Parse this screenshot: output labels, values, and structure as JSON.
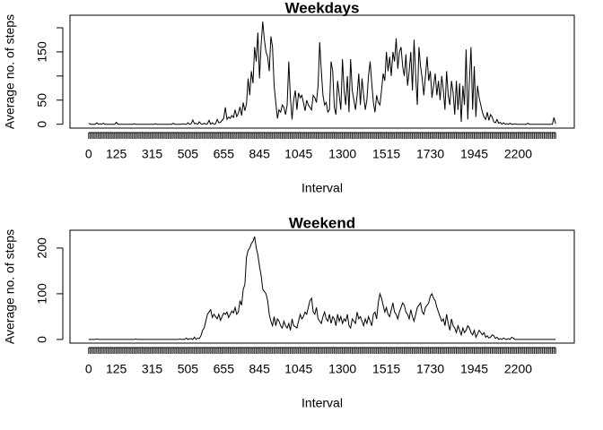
{
  "chart_data": [
    {
      "type": "line",
      "title": "Weekdays",
      "x_label": "Interval",
      "y_label": "Average no. of steps",
      "categories": [
        "0",
        null,
        null,
        null,
        null,
        null,
        null,
        null,
        null,
        null,
        null,
        null,
        null,
        null,
        null,
        null,
        null,
        "125",
        null,
        null,
        null,
        null,
        null,
        null,
        null,
        null,
        null,
        null,
        null,
        null,
        null,
        null,
        null,
        null,
        null,
        null,
        null,
        null,
        null,
        "315",
        null,
        null,
        null,
        null,
        null,
        null,
        null,
        null,
        null,
        null,
        null,
        null,
        null,
        null,
        null,
        null,
        null,
        null,
        null,
        null,
        null,
        "505",
        null,
        null,
        null,
        null,
        null,
        null,
        null,
        null,
        null,
        null,
        null,
        null,
        null,
        null,
        null,
        null,
        null,
        null,
        null,
        null,
        null,
        "655",
        null,
        null,
        null,
        null,
        null,
        null,
        null,
        null,
        null,
        null,
        null,
        null,
        null,
        null,
        null,
        null,
        null,
        null,
        null,
        null,
        null,
        "845",
        null,
        null,
        null,
        null,
        null,
        null,
        null,
        null,
        null,
        null,
        null,
        null,
        null,
        null,
        null,
        null,
        null,
        null,
        null,
        null,
        null,
        null,
        null,
        "1045",
        null,
        null,
        null,
        null,
        null,
        null,
        null,
        null,
        null,
        null,
        null,
        null,
        null,
        null,
        null,
        null,
        null,
        null,
        null,
        null,
        null,
        null,
        null,
        null,
        null,
        null,
        "1300",
        null,
        null,
        null,
        null,
        null,
        null,
        null,
        null,
        null,
        null,
        null,
        null,
        null,
        null,
        null,
        null,
        null,
        null,
        null,
        null,
        null,
        null,
        null,
        null,
        null,
        null,
        "1515",
        null,
        null,
        null,
        null,
        null,
        null,
        null,
        null,
        null,
        null,
        null,
        null,
        null,
        null,
        null,
        null,
        null,
        null,
        null,
        null,
        null,
        null,
        null,
        null,
        null,
        null,
        "1730",
        null,
        null,
        null,
        null,
        null,
        null,
        null,
        null,
        null,
        null,
        null,
        null,
        null,
        null,
        null,
        null,
        null,
        null,
        null,
        null,
        null,
        null,
        null,
        null,
        null,
        null,
        "1945",
        null,
        null,
        null,
        null,
        null,
        null,
        null,
        null,
        null,
        null,
        null,
        null,
        null,
        null,
        null,
        null,
        null,
        null,
        null,
        null,
        null,
        null,
        null,
        null,
        null,
        null,
        "2200",
        null,
        null,
        null,
        null,
        null,
        null,
        null,
        null,
        null,
        null,
        null,
        null,
        null,
        null,
        null,
        null,
        null,
        null,
        null,
        null,
        null,
        null,
        null
      ],
      "values": [
        2,
        0,
        0,
        0,
        0,
        3,
        0,
        1,
        0,
        2,
        0,
        0,
        0,
        0,
        0,
        0,
        0,
        4,
        0,
        0,
        0,
        0,
        0,
        0,
        0,
        0,
        0,
        0,
        1,
        0,
        0,
        0,
        0,
        0,
        0,
        0,
        0,
        0,
        0,
        0,
        0,
        1,
        0,
        0,
        0,
        0,
        0,
        0,
        0,
        0,
        0,
        0,
        2,
        0,
        0,
        0,
        0,
        0,
        1,
        0,
        0,
        3,
        0,
        1,
        9,
        1,
        2,
        0,
        5,
        1,
        0,
        2,
        0,
        1,
        8,
        0,
        3,
        0,
        1,
        10,
        3,
        4,
        8,
        12,
        35,
        10,
        15,
        12,
        18,
        14,
        30,
        16,
        22,
        36,
        18,
        45,
        28,
        42,
        95,
        60,
        110,
        85,
        160,
        130,
        190,
        95,
        165,
        213,
        175,
        150,
        140,
        110,
        182,
        160,
        80,
        45,
        12,
        30,
        25,
        40,
        35,
        20,
        40,
        130,
        55,
        10,
        50,
        70,
        30,
        65,
        55,
        60,
        45,
        28,
        50,
        40,
        35,
        30,
        60,
        55,
        45,
        80,
        170,
        110,
        60,
        40,
        45,
        25,
        30,
        130,
        110,
        35,
        20,
        90,
        60,
        30,
        135,
        70,
        40,
        100,
        25,
        135,
        70,
        50,
        30,
        60,
        105,
        40,
        95,
        60,
        30,
        50,
        100,
        130,
        85,
        45,
        25,
        60,
        45,
        40,
        70,
        105,
        90,
        150,
        110,
        140,
        100,
        150,
        130,
        178,
        115,
        150,
        160,
        120,
        100,
        145,
        80,
        110,
        150,
        70,
        175,
        100,
        40,
        160,
        120,
        95,
        60,
        100,
        140,
        90,
        110,
        55,
        80,
        105,
        60,
        90,
        50,
        100,
        70,
        30,
        110,
        60,
        40,
        90,
        65,
        20,
        90,
        30,
        85,
        5,
        80,
        40,
        155,
        10,
        90,
        160,
        30,
        120,
        15,
        80,
        55,
        40,
        25,
        15,
        10,
        25,
        8,
        20,
        15,
        5,
        3,
        10,
        2,
        4,
        0,
        3,
        0,
        1,
        0,
        2,
        0,
        0,
        1,
        0,
        0,
        0,
        0,
        0,
        0,
        0,
        2,
        0,
        0,
        0,
        0,
        0,
        0,
        0,
        0,
        0,
        0,
        0,
        0,
        0,
        0,
        0,
        14,
        1
      ],
      "color": "#000000",
      "ylim": [
        -8,
        226
      ],
      "yticks": [
        0,
        50,
        {
          "value": 100,
          "label": null
        },
        150,
        {
          "value": 200,
          "label": null
        }
      ]
    },
    {
      "type": "line",
      "title": "Weekend",
      "x_label": "Interval",
      "y_label": "Average no. of steps",
      "categories": [
        "0",
        null,
        null,
        null,
        null,
        null,
        null,
        null,
        null,
        null,
        null,
        null,
        null,
        null,
        null,
        null,
        null,
        "125",
        null,
        null,
        null,
        null,
        null,
        null,
        null,
        null,
        null,
        null,
        null,
        null,
        null,
        null,
        null,
        null,
        null,
        null,
        null,
        null,
        null,
        "315",
        null,
        null,
        null,
        null,
        null,
        null,
        null,
        null,
        null,
        null,
        null,
        null,
        null,
        null,
        null,
        null,
        null,
        null,
        null,
        null,
        null,
        "505",
        null,
        null,
        null,
        null,
        null,
        null,
        null,
        null,
        null,
        null,
        null,
        null,
        null,
        null,
        null,
        null,
        null,
        null,
        null,
        null,
        null,
        "655",
        null,
        null,
        null,
        null,
        null,
        null,
        null,
        null,
        null,
        null,
        null,
        null,
        null,
        null,
        null,
        null,
        null,
        null,
        null,
        null,
        null,
        "845",
        null,
        null,
        null,
        null,
        null,
        null,
        null,
        null,
        null,
        null,
        null,
        null,
        null,
        null,
        null,
        null,
        null,
        null,
        null,
        null,
        null,
        null,
        null,
        "1045",
        null,
        null,
        null,
        null,
        null,
        null,
        null,
        null,
        null,
        null,
        null,
        null,
        null,
        null,
        null,
        null,
        null,
        null,
        null,
        null,
        null,
        null,
        null,
        null,
        null,
        null,
        "1300",
        null,
        null,
        null,
        null,
        null,
        null,
        null,
        null,
        null,
        null,
        null,
        null,
        null,
        null,
        null,
        null,
        null,
        null,
        null,
        null,
        null,
        null,
        null,
        null,
        null,
        null,
        "1515",
        null,
        null,
        null,
        null,
        null,
        null,
        null,
        null,
        null,
        null,
        null,
        null,
        null,
        null,
        null,
        null,
        null,
        null,
        null,
        null,
        null,
        null,
        null,
        null,
        null,
        null,
        "1730",
        null,
        null,
        null,
        null,
        null,
        null,
        null,
        null,
        null,
        null,
        null,
        null,
        null,
        null,
        null,
        null,
        null,
        null,
        null,
        null,
        null,
        null,
        null,
        null,
        null,
        null,
        "1945",
        null,
        null,
        null,
        null,
        null,
        null,
        null,
        null,
        null,
        null,
        null,
        null,
        null,
        null,
        null,
        null,
        null,
        null,
        null,
        null,
        null,
        null,
        null,
        null,
        null,
        null,
        "2200",
        null,
        null,
        null,
        null,
        null,
        null,
        null,
        null,
        null,
        null,
        null,
        null,
        null,
        null,
        null,
        null,
        null,
        null,
        null,
        null,
        null,
        null,
        null
      ],
      "values": [
        0,
        0,
        0,
        0,
        0,
        1,
        0,
        0,
        0,
        0,
        0,
        0,
        0,
        0,
        0,
        0,
        0,
        0,
        0,
        0,
        0,
        0,
        0,
        0,
        0,
        0,
        0,
        0,
        0,
        1,
        0,
        0,
        0,
        0,
        0,
        0,
        0,
        0,
        0,
        0,
        0,
        0,
        0,
        0,
        0,
        0,
        0,
        0,
        0,
        0,
        0,
        0,
        0,
        0,
        0,
        0,
        1,
        0,
        0,
        0,
        3,
        0,
        1,
        2,
        0,
        5,
        0,
        3,
        2,
        8,
        20,
        25,
        40,
        55,
        60,
        65,
        48,
        55,
        50,
        45,
        55,
        42,
        50,
        58,
        55,
        60,
        48,
        55,
        62,
        58,
        70,
        55,
        60,
        85,
        75,
        110,
        120,
        180,
        195,
        200,
        210,
        215,
        225,
        200,
        185,
        160,
        140,
        110,
        105,
        100,
        85,
        55,
        40,
        30,
        50,
        30,
        45,
        40,
        30,
        25,
        40,
        30,
        25,
        35,
        20,
        45,
        30,
        28,
        25,
        40,
        55,
        45,
        50,
        60,
        55,
        70,
        85,
        90,
        60,
        55,
        70,
        45,
        40,
        35,
        50,
        60,
        45,
        40,
        55,
        35,
        50,
        45,
        30,
        55,
        40,
        50,
        35,
        45,
        40,
        55,
        30,
        25,
        45,
        40,
        35,
        60,
        45,
        50,
        40,
        30,
        45,
        35,
        50,
        40,
        30,
        55,
        60,
        45,
        80,
        100,
        90,
        75,
        60,
        70,
        55,
        50,
        65,
        80,
        60,
        55,
        45,
        60,
        70,
        80,
        75,
        60,
        55,
        45,
        65,
        50,
        40,
        55,
        70,
        75,
        80,
        60,
        55,
        70,
        75,
        80,
        95,
        100,
        90,
        85,
        70,
        60,
        50,
        40,
        45,
        30,
        55,
        35,
        20,
        45,
        30,
        25,
        15,
        30,
        20,
        10,
        25,
        15,
        20,
        30,
        25,
        15,
        10,
        20,
        5,
        12,
        20,
        15,
        10,
        15,
        5,
        8,
        3,
        5,
        10,
        8,
        2,
        5,
        0,
        2,
        0,
        3,
        1,
        0,
        2,
        0,
        5,
        3,
        0,
        0,
        0,
        0,
        0,
        0,
        0,
        0,
        0,
        0,
        0,
        0,
        0,
        0,
        0,
        0,
        0,
        0,
        0,
        0,
        0,
        0,
        0,
        0,
        0,
        0
      ],
      "color": "#000000",
      "ylim": [
        -8,
        239
      ],
      "yticks": [
        0,
        100,
        200
      ]
    }
  ]
}
